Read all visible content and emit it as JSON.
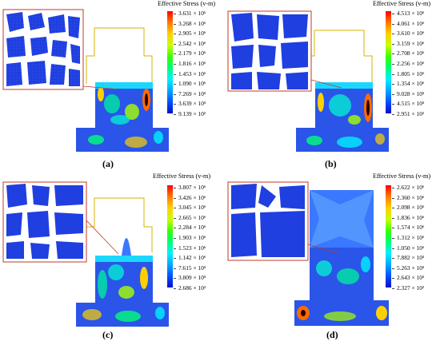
{
  "panels": [
    {
      "label": "(a)",
      "legend_title": "Effective Stress (v-m)",
      "ticks": [
        "3.631 × 10⁶",
        "3.268 × 10⁶",
        "2.905 × 10⁶",
        "2.542 × 10⁶",
        "2.179 × 10⁶",
        "1.816 × 10⁶",
        "1.453 × 10⁶",
        "1.090 × 10⁶",
        "7.269 × 10⁵",
        "3.639 × 10⁵",
        "9.139 × 10²"
      ]
    },
    {
      "label": "(b)",
      "legend_title": "Effective Stress (v-m)",
      "ticks": [
        "4.513 × 10⁶",
        "4.061 × 10⁶",
        "3.610 × 10⁶",
        "3.159 × 10⁶",
        "2.708 × 10⁶",
        "2.256 × 10⁶",
        "1.805 × 10⁶",
        "1.354 × 10⁶",
        "9.028 × 10⁵",
        "4.515 × 10⁵",
        "2.951 × 10²"
      ]
    },
    {
      "label": "(c)",
      "legend_title": "Effective Stress (v-m)",
      "ticks": [
        "3.807 × 10⁶",
        "3.426 × 10⁶",
        "3.045 × 10⁶",
        "2.665 × 10⁶",
        "2.284 × 10⁶",
        "1.903 × 10⁶",
        "1.523 × 10⁶",
        "1.142 × 10⁶",
        "7.615 × 10⁵",
        "3.809 × 10⁵",
        "2.686 × 10²"
      ]
    },
    {
      "label": "(d)",
      "legend_title": "Effective Stress (v-m)",
      "ticks": [
        "2.622 × 10⁶",
        "2.360 × 10⁶",
        "2.098 × 10⁶",
        "1.836 × 10⁶",
        "1.574 × 10⁶",
        "1.312 × 10⁶",
        "1.050 × 10⁶",
        "7.882 × 10⁵",
        "5.263 × 10⁵",
        "2.643 × 10⁵",
        "2.327 × 10²"
      ]
    }
  ],
  "colors": {
    "colorbar_stops": [
      "#ff0000",
      "#ff7a00",
      "#ffd000",
      "#c8ff00",
      "#3cff00",
      "#00ff78",
      "#00f0ff",
      "#00a8ff",
      "#0050ff",
      "#0010c8"
    ],
    "inset_border": "#c0392b",
    "container_outline": "#d4b300"
  }
}
